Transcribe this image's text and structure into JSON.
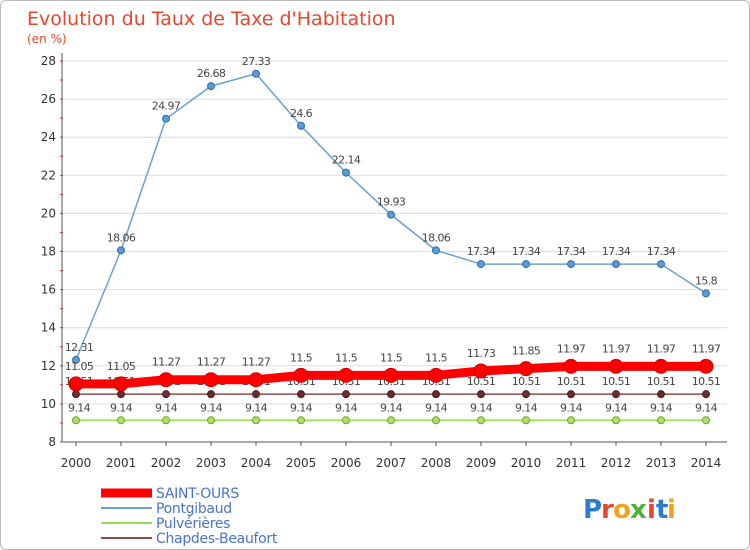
{
  "chart_data": {
    "type": "line",
    "title": "Evolution du Taux de Taxe d'Habitation",
    "subtitle": "(en %)",
    "x": [
      "2000",
      "2001",
      "2002",
      "2003",
      "2004",
      "2005",
      "2006",
      "2007",
      "2008",
      "2009",
      "2010",
      "2011",
      "2012",
      "2013",
      "2014"
    ],
    "ylim": [
      8,
      28
    ],
    "yticks": [
      "8",
      "10",
      "12",
      "14",
      "16",
      "18",
      "20",
      "22",
      "24",
      "26",
      "28"
    ],
    "grid": "horizontal",
    "legend": "bottom-left",
    "series": [
      {
        "name": "SAINT-OURS",
        "color": "#ff0000",
        "values": [
          11.05,
          11.05,
          11.27,
          11.27,
          11.27,
          11.5,
          11.5,
          11.5,
          11.5,
          11.73,
          11.85,
          11.97,
          11.97,
          11.97,
          11.97
        ],
        "labels": [
          "11.05",
          "11.05",
          "11.27",
          "11.27",
          "11.27",
          "11.5",
          "11.5",
          "11.5",
          "11.5",
          "11.73",
          "11.85",
          "11.97",
          "11.97",
          "11.97",
          "11.97"
        ]
      },
      {
        "name": "Pontgibaud",
        "color": "#6aa0d2",
        "values": [
          12.31,
          18.06,
          24.97,
          26.68,
          27.33,
          24.6,
          22.14,
          19.93,
          18.06,
          17.34,
          17.34,
          17.34,
          17.34,
          17.34,
          15.8
        ],
        "labels": [
          "12.31",
          "18.06",
          "24.97",
          "26.68",
          "27.33",
          "24.6",
          "22.14",
          "19.93",
          "18.06",
          "17.34",
          "17.34",
          "17.34",
          "17.34",
          "17.34",
          "15.8"
        ]
      },
      {
        "name": "Pulvérières",
        "color": "#99dd55",
        "values": [
          9.14,
          9.14,
          9.14,
          9.14,
          9.14,
          9.14,
          9.14,
          9.14,
          9.14,
          9.14,
          9.14,
          9.14,
          9.14,
          9.14,
          9.14
        ],
        "labels": [
          "9.14",
          "9.14",
          "9.14",
          "9.14",
          "9.14",
          "9.14",
          "9.14",
          "9.14",
          "9.14",
          "9.14",
          "9.14",
          "9.14",
          "9.14",
          "9.14",
          "9.14"
        ]
      },
      {
        "name": "Chapdes-Beaufort",
        "color": "#8b4a4a",
        "values": [
          10.51,
          10.51,
          10.51,
          10.51,
          10.51,
          10.51,
          10.51,
          10.51,
          10.51,
          10.51,
          10.51,
          10.51,
          10.51,
          10.51,
          10.51
        ],
        "labels": [
          "10.51",
          "10.51",
          "10.51",
          "10.51",
          "10.51",
          "10.51",
          "10.51",
          "10.51",
          "10.51",
          "10.51",
          "10.51",
          "10.51",
          "10.51",
          "10.51",
          "10.51"
        ]
      }
    ]
  },
  "logo": {
    "text": "Proxiti"
  }
}
